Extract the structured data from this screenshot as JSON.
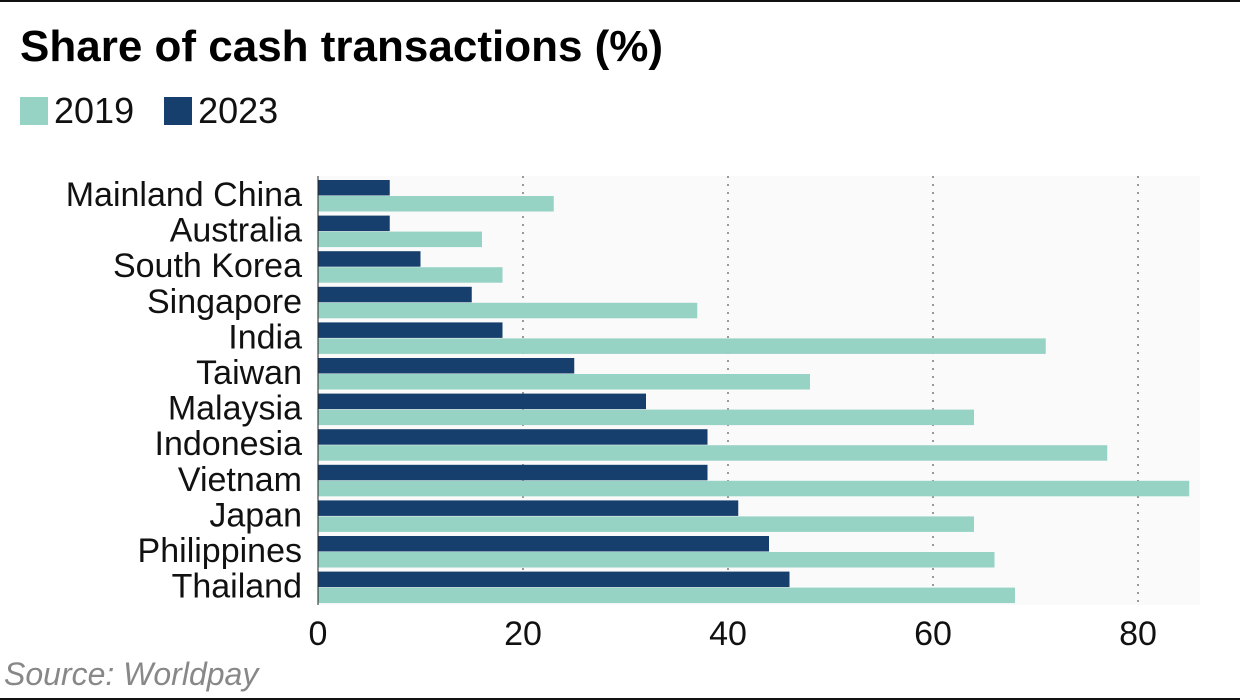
{
  "chart_data": {
    "type": "bar",
    "orientation": "horizontal",
    "title": "Share of cash transactions (%)",
    "categories": [
      "Mainland China",
      "Australia",
      "South Korea",
      "Singapore",
      "India",
      "Taiwan",
      "Malaysia",
      "Indonesia",
      "Vietnam",
      "Japan",
      "Philippines",
      "Thailand"
    ],
    "series": [
      {
        "name": "2019",
        "color": "#96d3c5",
        "values": [
          23,
          16,
          18,
          37,
          71,
          48,
          64,
          77,
          85,
          64,
          66,
          68
        ]
      },
      {
        "name": "2023",
        "color": "#173f6d",
        "values": [
          7,
          7,
          10,
          15,
          18,
          25,
          32,
          38,
          38,
          41,
          44,
          46
        ]
      }
    ],
    "xlim": [
      0,
      86
    ],
    "xticks": [
      0,
      20,
      40,
      60,
      80
    ],
    "grid": "vertical dotted",
    "legend": "top-left",
    "source": "Source: Worldpay"
  }
}
